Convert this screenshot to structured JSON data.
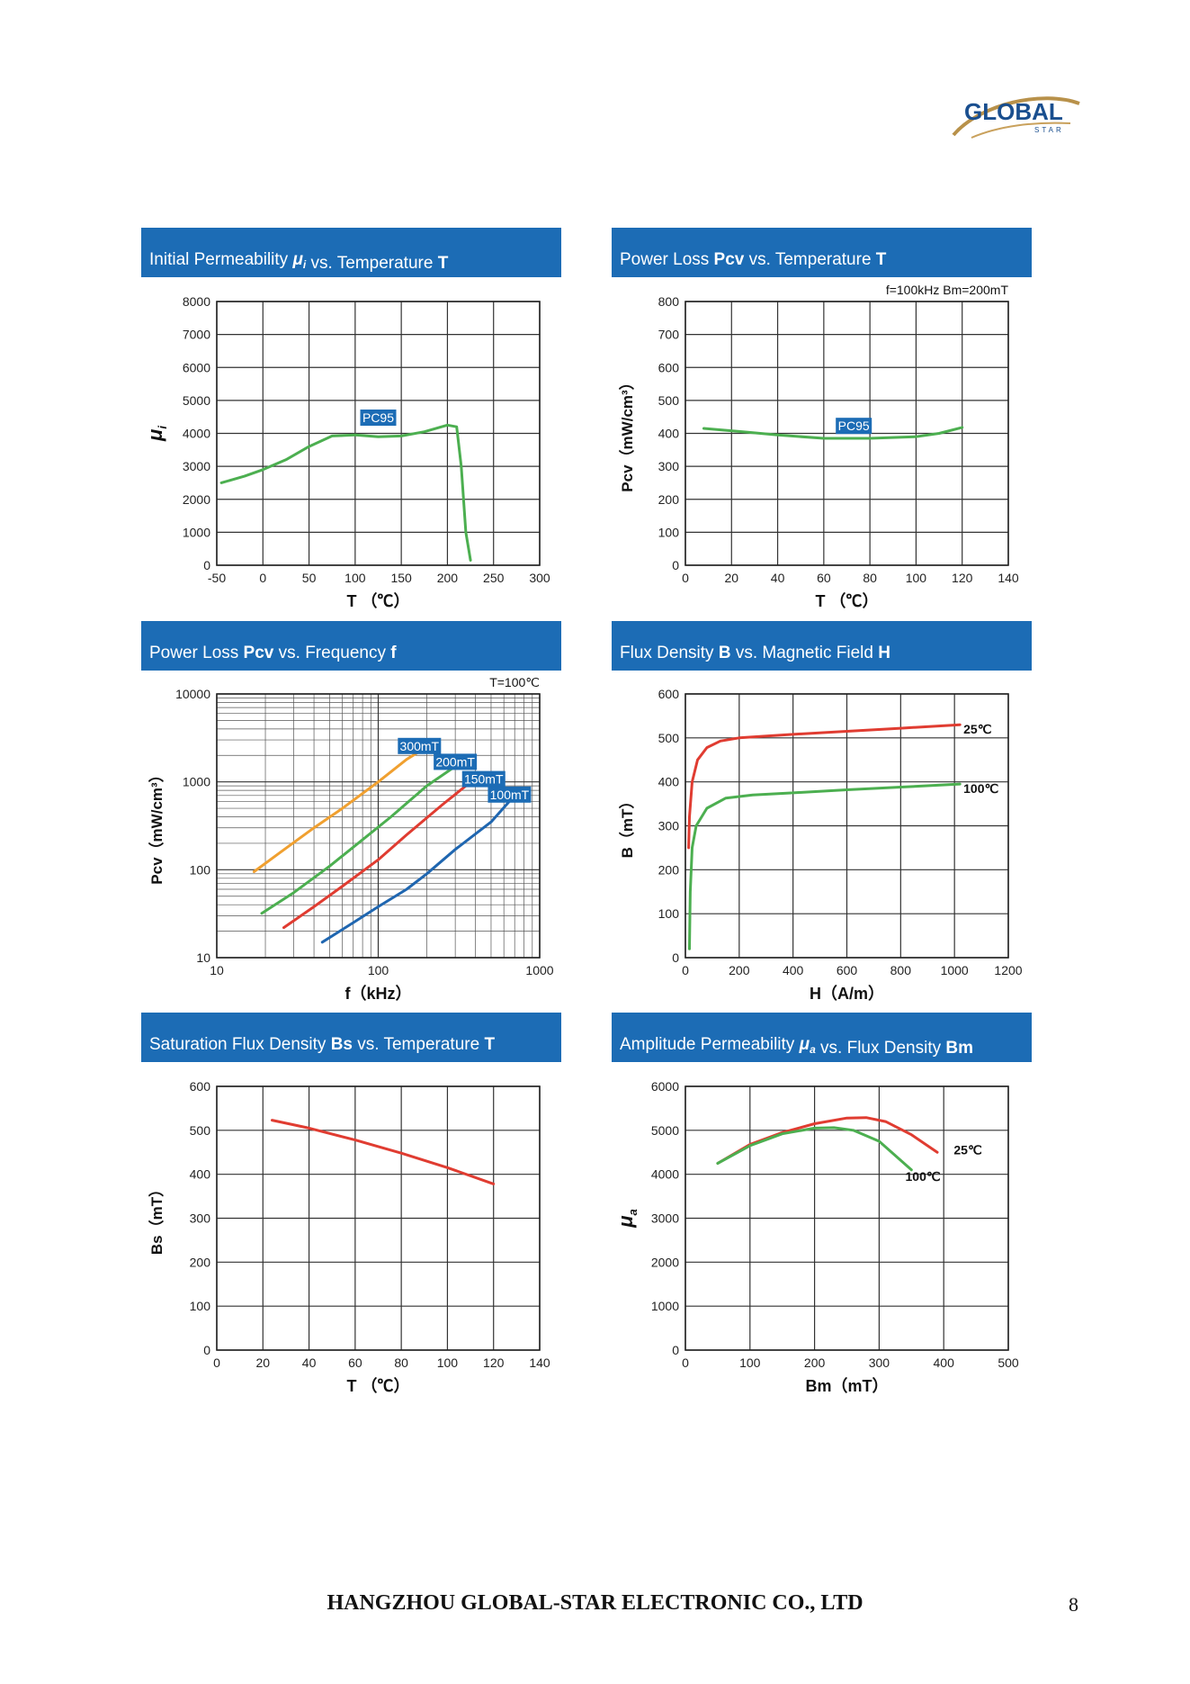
{
  "logo": {
    "text": "GLOBAL",
    "subtext": "STAR"
  },
  "footer": {
    "company": "HANGZHOU GLOBAL-STAR ELECTRONIC CO., LTD",
    "page": "8"
  },
  "chart_data": [
    {
      "type": "line",
      "title_parts": [
        {
          "t": "Initial Permeability "
        },
        {
          "t": "μ",
          "b": true,
          "i": true
        },
        {
          "t": "i",
          "sub": true,
          "b": true,
          "i": true
        },
        {
          "t": " vs. Temperature "
        },
        {
          "t": "T",
          "b": true
        }
      ],
      "xlabel": "T （℃）",
      "ylabel": "μi",
      "ylabel_style": "mu",
      "note": "",
      "xscale": "linear",
      "yscale": "linear",
      "xlim": [
        -50,
        300
      ],
      "ylim": [
        0,
        8000
      ],
      "xticks": [
        -50,
        0,
        50,
        100,
        150,
        200,
        250,
        300
      ],
      "yticks": [
        0,
        1000,
        2000,
        3000,
        4000,
        5000,
        6000,
        7000,
        8000
      ],
      "series": [
        {
          "color": "#4caf50",
          "points": [
            [
              -45,
              2500
            ],
            [
              -20,
              2700
            ],
            [
              0,
              2900
            ],
            [
              25,
              3200
            ],
            [
              50,
              3600
            ],
            [
              75,
              3920
            ],
            [
              100,
              3950
            ],
            [
              125,
              3900
            ],
            [
              150,
              3920
            ],
            [
              175,
              4050
            ],
            [
              200,
              4250
            ],
            [
              210,
              4200
            ],
            [
              215,
              3000
            ],
            [
              220,
              1000
            ],
            [
              225,
              150
            ]
          ]
        }
      ],
      "labels": [
        {
          "text": "PC95",
          "x": 125,
          "y": 4450,
          "box": true
        },
        {
          "text": "",
          "x": 0,
          "y": 0,
          "box": false
        }
      ]
    },
    {
      "type": "line",
      "title_parts": [
        {
          "t": "Power Loss "
        },
        {
          "t": "Pcv",
          "b": true
        },
        {
          "t": " vs. Temperature "
        },
        {
          "t": "T",
          "b": true
        }
      ],
      "xlabel": "T （℃）",
      "ylabel": "Pcv（mW/cm³）",
      "ylabel_style": "plain",
      "note": "f=100kHz    Bm=200mT",
      "xscale": "linear",
      "yscale": "linear",
      "xlim": [
        0,
        140
      ],
      "ylim": [
        0,
        800
      ],
      "xticks": [
        0,
        20,
        40,
        60,
        80,
        100,
        120,
        140
      ],
      "yticks": [
        0,
        100,
        200,
        300,
        400,
        500,
        600,
        700,
        800
      ],
      "series": [
        {
          "color": "#4caf50",
          "points": [
            [
              8,
              415
            ],
            [
              25,
              405
            ],
            [
              40,
              395
            ],
            [
              60,
              385
            ],
            [
              80,
              385
            ],
            [
              100,
              390
            ],
            [
              110,
              400
            ],
            [
              120,
              418
            ]
          ]
        }
      ],
      "labels": [
        {
          "text": "PC95",
          "x": 73,
          "y": 420,
          "box": true
        }
      ]
    },
    {
      "type": "line",
      "title_parts": [
        {
          "t": "Power Loss "
        },
        {
          "t": "Pcv",
          "b": true
        },
        {
          "t": " vs. Frequency "
        },
        {
          "t": "f",
          "b": true
        }
      ],
      "xlabel": "f（kHz）",
      "xlabel_bold_first": true,
      "ylabel": "Pcv（mW/cm³）",
      "ylabel_style": "plain",
      "note": "T=100℃",
      "xscale": "log",
      "yscale": "log",
      "xlim": [
        10,
        1000
      ],
      "ylim": [
        10,
        10000
      ],
      "xticks": [
        10,
        100,
        1000
      ],
      "yticks": [
        10,
        100,
        1000,
        10000
      ],
      "series": [
        {
          "name": "300mT",
          "color": "#f0a030",
          "points": [
            [
              17,
              95
            ],
            [
              25,
              160
            ],
            [
              40,
              300
            ],
            [
              60,
              500
            ],
            [
              100,
              1000
            ],
            [
              150,
              1800
            ],
            [
              200,
              2500
            ]
          ]
        },
        {
          "name": "200mT",
          "color": "#4caf50",
          "points": [
            [
              19,
              32
            ],
            [
              30,
              55
            ],
            [
              50,
              110
            ],
            [
              80,
              220
            ],
            [
              120,
              400
            ],
            [
              200,
              900
            ],
            [
              300,
              1500
            ]
          ]
        },
        {
          "name": "150mT",
          "color": "#e03c31",
          "points": [
            [
              26,
              22
            ],
            [
              40,
              38
            ],
            [
              60,
              65
            ],
            [
              100,
              130
            ],
            [
              150,
              250
            ],
            [
              250,
              550
            ],
            [
              400,
              1100
            ]
          ]
        },
        {
          "name": "100mT",
          "color": "#1f66b0",
          "points": [
            [
              45,
              15
            ],
            [
              70,
              25
            ],
            [
              100,
              38
            ],
            [
              150,
              60
            ],
            [
              200,
              90
            ],
            [
              300,
              170
            ],
            [
              500,
              350
            ],
            [
              650,
              600
            ]
          ]
        }
      ],
      "labels": [
        {
          "text": "300mT",
          "x": 180,
          "y": 2500,
          "box": true
        },
        {
          "text": "200mT",
          "x": 300,
          "y": 1650,
          "box": true
        },
        {
          "text": "150mT",
          "x": 450,
          "y": 1050,
          "box": true
        },
        {
          "text": "100mT",
          "x": 650,
          "y": 700,
          "box": true
        }
      ]
    },
    {
      "type": "line",
      "title_parts": [
        {
          "t": "Flux Density "
        },
        {
          "t": "B",
          "b": true
        },
        {
          "t": " vs. Magnetic Field "
        },
        {
          "t": "H",
          "b": true
        }
      ],
      "xlabel": "H（A/m）",
      "ylabel": "B（mT）",
      "ylabel_style": "plain",
      "note": "",
      "xscale": "linear",
      "yscale": "linear",
      "xlim": [
        0,
        1200
      ],
      "ylim": [
        0,
        600
      ],
      "xticks": [
        0,
        200,
        400,
        600,
        800,
        1000,
        1200
      ],
      "yticks": [
        0,
        100,
        200,
        300,
        400,
        500,
        600
      ],
      "series": [
        {
          "name": "25℃",
          "color": "#e03c31",
          "points": [
            [
              12,
              250
            ],
            [
              15,
              320
            ],
            [
              25,
              400
            ],
            [
              45,
              450
            ],
            [
              80,
              478
            ],
            [
              130,
              493
            ],
            [
              200,
              500
            ],
            [
              400,
              508
            ],
            [
              600,
              515
            ],
            [
              800,
              522
            ],
            [
              1020,
              530
            ]
          ]
        },
        {
          "name": "100℃",
          "color": "#4caf50",
          "points": [
            [
              15,
              20
            ],
            [
              18,
              150
            ],
            [
              25,
              250
            ],
            [
              40,
              300
            ],
            [
              80,
              340
            ],
            [
              150,
              363
            ],
            [
              250,
              370
            ],
            [
              400,
              375
            ],
            [
              600,
              382
            ],
            [
              800,
              388
            ],
            [
              1020,
              395
            ]
          ]
        }
      ],
      "labels": [
        {
          "text": "25℃",
          "x": 1020,
          "y": 510,
          "box": false
        },
        {
          "text": "100℃",
          "x": 1020,
          "y": 375,
          "box": false
        }
      ]
    },
    {
      "type": "line",
      "title_parts": [
        {
          "t": "Saturation Flux Density "
        },
        {
          "t": "Bs",
          "b": true
        },
        {
          "t": " vs. Temperature "
        },
        {
          "t": "T",
          "b": true
        }
      ],
      "xlabel": "T （℃）",
      "ylabel": "Bs（mT）",
      "ylabel_style": "plain",
      "note": "",
      "xscale": "linear",
      "yscale": "linear",
      "xlim": [
        0,
        140
      ],
      "ylim": [
        0,
        600
      ],
      "xticks": [
        0,
        20,
        40,
        60,
        80,
        100,
        120,
        140
      ],
      "yticks": [
        0,
        100,
        200,
        300,
        400,
        500,
        600
      ],
      "series": [
        {
          "color": "#e03c31",
          "points": [
            [
              24,
              523
            ],
            [
              40,
              505
            ],
            [
              60,
              478
            ],
            [
              80,
              448
            ],
            [
              100,
              415
            ],
            [
              120,
              378
            ]
          ]
        }
      ],
      "labels": []
    },
    {
      "type": "line",
      "title_parts": [
        {
          "t": "Amplitude Permeability "
        },
        {
          "t": "μ",
          "b": true,
          "i": true
        },
        {
          "t": "a",
          "sub": true,
          "b": true,
          "i": true
        },
        {
          "t": " vs. Flux Density "
        },
        {
          "t": "Bm",
          "b": true
        }
      ],
      "xlabel": "Bm（mT）",
      "ylabel": "μa",
      "ylabel_style": "mu",
      "note": "",
      "xscale": "linear",
      "yscale": "linear",
      "xlim": [
        0,
        500
      ],
      "ylim": [
        0,
        6000
      ],
      "xticks": [
        0,
        100,
        200,
        300,
        400,
        500
      ],
      "yticks": [
        0,
        1000,
        2000,
        3000,
        4000,
        5000,
        6000
      ],
      "series": [
        {
          "name": "25℃",
          "color": "#e03c31",
          "points": [
            [
              50,
              4250
            ],
            [
              100,
              4680
            ],
            [
              150,
              4950
            ],
            [
              200,
              5150
            ],
            [
              250,
              5280
            ],
            [
              280,
              5290
            ],
            [
              310,
              5200
            ],
            [
              350,
              4900
            ],
            [
              390,
              4500
            ]
          ]
        },
        {
          "name": "100℃",
          "color": "#4caf50",
          "points": [
            [
              50,
              4250
            ],
            [
              100,
              4650
            ],
            [
              150,
              4920
            ],
            [
              200,
              5050
            ],
            [
              230,
              5060
            ],
            [
              260,
              5000
            ],
            [
              300,
              4750
            ],
            [
              350,
              4100
            ]
          ]
        }
      ],
      "labels": [
        {
          "text": "25℃",
          "x": 410,
          "y": 4450,
          "box": false
        },
        {
          "text": "100℃",
          "x": 335,
          "y": 3850,
          "box": false
        }
      ]
    }
  ]
}
